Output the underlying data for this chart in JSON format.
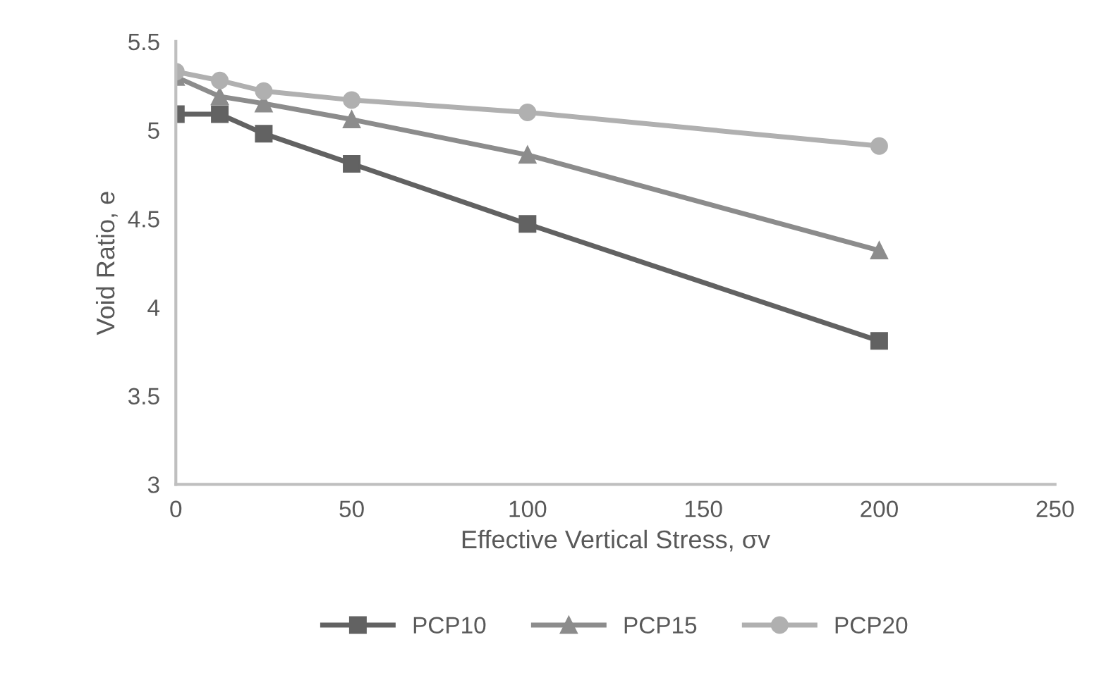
{
  "chart_data": {
    "type": "line",
    "xlabel": "Effective Vertical Stress, σv",
    "ylabel": "Void Ratio, e",
    "x": [
      0,
      12.5,
      25,
      50,
      100,
      200
    ],
    "series": [
      {
        "name": "PCP10",
        "color": "#626262",
        "values": [
          5.09,
          5.09,
          4.98,
          4.81,
          4.47,
          3.81
        ],
        "marker": "square"
      },
      {
        "name": "PCP15",
        "color": "#8c8c8c",
        "values": [
          5.3,
          5.19,
          5.15,
          5.06,
          4.86,
          4.32
        ],
        "marker": "triangle"
      },
      {
        "name": "PCP20",
        "color": "#b0b0b0",
        "values": [
          5.33,
          5.28,
          5.22,
          5.17,
          5.1,
          4.91
        ],
        "marker": "circle"
      }
    ],
    "xlim": [
      0,
      250
    ],
    "xticks": [
      0,
      50,
      100,
      150,
      200,
      250
    ],
    "ylim": [
      3,
      5.5
    ],
    "yticks": [
      3,
      3.5,
      4,
      4.5,
      5,
      5.5
    ],
    "grid": false,
    "legend": "bottom",
    "line_style": "solid"
  }
}
